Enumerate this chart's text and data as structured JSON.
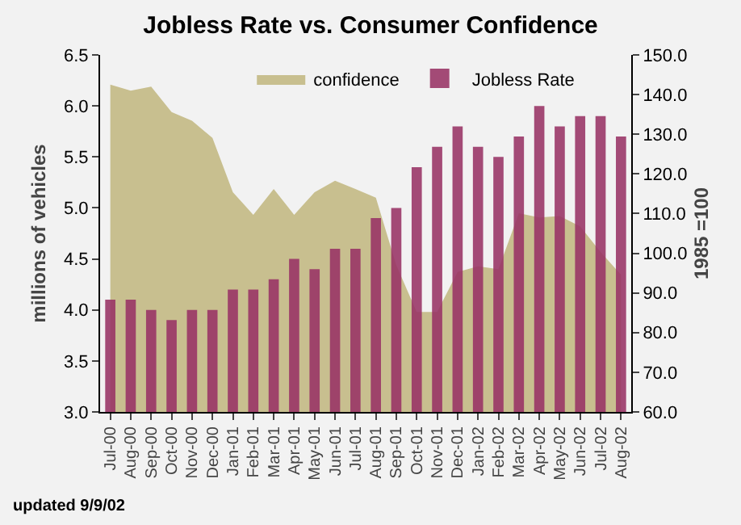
{
  "chart_data": {
    "type": "bar",
    "title": "Jobless Rate vs. Consumer Confidence",
    "xlabel": null,
    "ylabel": "millions of vehicles",
    "y2label": "1985 =100",
    "categories": [
      "Jul-00",
      "Aug-00",
      "Sep-00",
      "Oct-00",
      "Nov-00",
      "Dec-00",
      "Jan-01",
      "Feb-01",
      "Mar-01",
      "Apr-01",
      "May-01",
      "Jun-01",
      "Jul-01",
      "Aug-01",
      "Sep-01",
      "Oct-01",
      "Nov-01",
      "Dec-01",
      "Jan-02",
      "Feb-02",
      "Mar-02",
      "Apr-02",
      "May-02",
      "Jun-02",
      "Jul-02",
      "Aug-02"
    ],
    "series": [
      {
        "name": "confidence",
        "type": "area",
        "axis": "y2",
        "color": "#c8bf8f",
        "values": [
          142.5,
          141,
          142,
          135.6,
          133.4,
          129.1,
          115.4,
          109.7,
          116.2,
          109.7,
          115.4,
          118.3,
          116.2,
          114,
          97,
          85.2,
          85.2,
          95.3,
          96.7,
          96,
          110.1,
          109,
          109.4,
          106.8,
          100.3,
          94.6
        ]
      },
      {
        "name": "Jobless Rate",
        "color": "#993366",
        "values": [
          4.1,
          4.1,
          4.0,
          3.9,
          4.0,
          4.0,
          4.2,
          4.2,
          4.3,
          4.5,
          4.4,
          4.6,
          4.6,
          4.9,
          5.0,
          5.4,
          5.6,
          5.8,
          5.6,
          5.5,
          5.7,
          6.0,
          5.8,
          5.9,
          5.9,
          5.7
        ]
      }
    ],
    "ylim": [
      3.0,
      6.5
    ],
    "yticks": [
      {
        "value": 3,
        "label": "3.0"
      },
      {
        "value": 3.5,
        "label": "3.5"
      },
      {
        "value": 4,
        "label": "4.0"
      },
      {
        "value": 4.5,
        "label": "4.5"
      },
      {
        "value": 5,
        "label": "5.0"
      },
      {
        "value": 5.5,
        "label": "5.5"
      },
      {
        "value": 6,
        "label": "6.0"
      },
      {
        "value": 6.5,
        "label": "6.5"
      }
    ],
    "y2lim": [
      60,
      150
    ],
    "y2ticks": [
      {
        "value": 60,
        "label": "60.0"
      },
      {
        "value": 70,
        "label": "70.0"
      },
      {
        "value": 80,
        "label": "80.0"
      },
      {
        "value": 90,
        "label": "90.0"
      },
      {
        "value": 100,
        "label": "100.0"
      },
      {
        "value": 110,
        "label": "110.0"
      },
      {
        "value": 120,
        "label": "120.0"
      },
      {
        "value": 130,
        "label": "130.0"
      },
      {
        "value": 140,
        "label": "140.0"
      },
      {
        "value": 150,
        "label": "150.0"
      }
    ],
    "grid": false,
    "legend": "top",
    "annotations": [
      "updated 9/9/02"
    ]
  }
}
